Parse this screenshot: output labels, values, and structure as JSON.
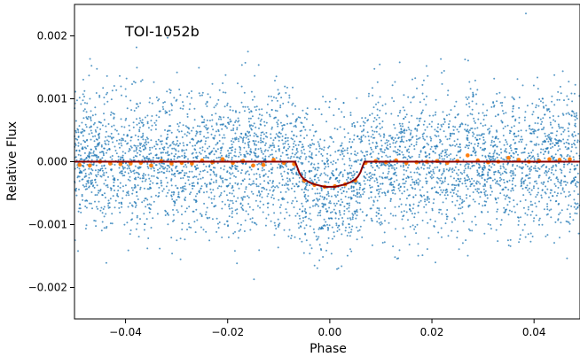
{
  "chart_data": {
    "type": "scatter",
    "title": "",
    "annotation": "TOI-1052b",
    "xlabel": "Phase",
    "ylabel": "Relative Flux",
    "xlim": [
      -0.05,
      0.049
    ],
    "ylim": [
      -0.0025,
      0.0025
    ],
    "x_ticks": [
      -0.04,
      -0.02,
      0.0,
      0.02,
      0.04
    ],
    "x_tick_labels": [
      "−0.04",
      "−0.02",
      "0.00",
      "0.02",
      "0.04"
    ],
    "y_ticks": [
      -0.002,
      -0.001,
      0.0,
      0.001,
      0.002
    ],
    "y_tick_labels": [
      "−0.002",
      "−0.001",
      "0.000",
      "0.001",
      "0.002"
    ],
    "grid": false,
    "series": [
      {
        "kind": "raw_photometry_scatter",
        "color": "#1f77b4",
        "point_count_approx": 4500,
        "scatter_std": 0.00055,
        "transit_depth": 0.0004
      },
      {
        "kind": "binned_points",
        "color": "#ff7f0e",
        "x": [
          -0.049,
          -0.047,
          -0.045,
          -0.043,
          -0.041,
          -0.039,
          -0.037,
          -0.035,
          -0.033,
          -0.031,
          -0.029,
          -0.027,
          -0.025,
          -0.023,
          -0.021,
          -0.019,
          -0.017,
          -0.015,
          -0.013,
          -0.011,
          -0.009,
          -0.007,
          -0.005,
          -0.003,
          -0.001,
          0.001,
          0.003,
          0.005,
          0.007,
          0.009,
          0.011,
          0.013,
          0.015,
          0.017,
          0.019,
          0.021,
          0.023,
          0.025,
          0.027,
          0.029,
          0.031,
          0.033,
          0.035,
          0.037,
          0.039,
          0.041,
          0.043,
          0.045,
          0.047
        ],
        "y": [
          -5e-05,
          -6e-05,
          0.0,
          -3e-05,
          -4e-05,
          -3e-05,
          -2e-05,
          -6e-05,
          1e-05,
          -3e-05,
          -2e-05,
          -3e-05,
          2e-05,
          -1e-05,
          4e-05,
          -2e-05,
          1e-05,
          -6e-05,
          -5e-05,
          3e-05,
          -2e-05,
          -4e-05,
          -0.0003,
          -0.00037,
          -0.0004,
          -0.00039,
          -0.00036,
          -0.0003,
          -2e-05,
          1e-05,
          -1e-05,
          2e-05,
          -2e-05,
          -1e-05,
          0.0,
          1e-05,
          -2e-05,
          1e-05,
          0.0001,
          2e-05,
          -1e-05,
          0.0,
          6e-05,
          3e-05,
          0.0,
          1e-05,
          4e-05,
          3e-05,
          4e-05
        ]
      },
      {
        "kind": "transit_model",
        "color": "#8b0000",
        "x": [
          -0.05,
          -0.0068,
          -0.0064,
          -0.006,
          -0.0055,
          -0.005,
          -0.004,
          -0.003,
          -0.002,
          -0.001,
          0.0,
          0.001,
          0.002,
          0.003,
          0.004,
          0.005,
          0.0055,
          0.006,
          0.0064,
          0.0068,
          0.049
        ],
        "y": [
          0.0,
          0.0,
          -8e-05,
          -0.00017,
          -0.00024,
          -0.00028,
          -0.00033,
          -0.00036,
          -0.00038,
          -0.0004,
          -0.0004,
          -0.0004,
          -0.00038,
          -0.00036,
          -0.00033,
          -0.00028,
          -0.00024,
          -0.00017,
          -8e-05,
          0.0,
          0.0
        ]
      }
    ]
  }
}
